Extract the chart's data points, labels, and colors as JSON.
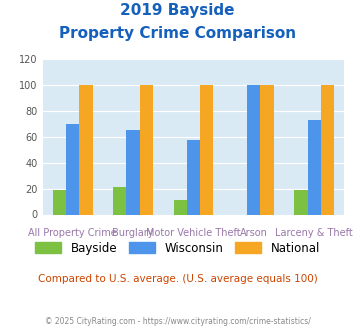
{
  "title_line1": "2019 Bayside",
  "title_line2": "Property Crime Comparison",
  "title_color": "#1560bd",
  "categories": [
    "All Property Crime",
    "Burglary",
    "Motor Vehicle Theft",
    "Arson",
    "Larceny & Theft"
  ],
  "top_labels": [
    "",
    "Burglary",
    "",
    "Arson",
    ""
  ],
  "bottom_labels": [
    "All Property Crime",
    "",
    "Motor Vehicle Theft",
    "",
    "Larceny & Theft"
  ],
  "bayside": [
    19,
    21,
    11,
    0,
    19
  ],
  "wisconsin": [
    70,
    65,
    58,
    100,
    73
  ],
  "national": [
    100,
    100,
    100,
    100,
    100
  ],
  "bayside_color": "#7dc142",
  "wisconsin_color": "#4d94eb",
  "national_color": "#f5a623",
  "ylim": [
    0,
    120
  ],
  "yticks": [
    0,
    20,
    40,
    60,
    80,
    100,
    120
  ],
  "plot_bg": "#daeaf5",
  "note": "Compared to U.S. average. (U.S. average equals 100)",
  "note_color": "#cc4400",
  "footer": "© 2025 CityRating.com - https://www.cityrating.com/crime-statistics/",
  "footer_color": "#888888",
  "label_color": "#9977aa",
  "legend_labels": [
    "Bayside",
    "Wisconsin",
    "National"
  ]
}
